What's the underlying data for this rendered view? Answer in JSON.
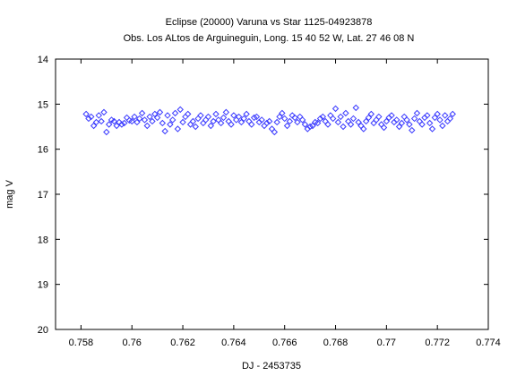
{
  "chart_data": {
    "type": "scatter",
    "title": "Eclipse (20000) Varuna vs Star 1125-04923878",
    "subtitle": "Obs. Los ALtos de Arguineguin, Long. 15 40 52 W, Lat. 27 46 08 N",
    "xlabel": "DJ - 2453735",
    "ylabel": "mag V",
    "xlim": [
      0.757,
      0.774
    ],
    "ylim": [
      14,
      20
    ],
    "y_inverted": true,
    "x_ticks": [
      "0.758",
      "0.76",
      "0.762",
      "0.764",
      "0.766",
      "0.768",
      "0.77",
      "0.772",
      "0.774"
    ],
    "x_tick_values": [
      0.758,
      0.76,
      0.762,
      0.764,
      0.766,
      0.768,
      0.77,
      0.772,
      0.774
    ],
    "y_ticks": [
      "14",
      "15",
      "16",
      "17",
      "18",
      "19",
      "20"
    ],
    "y_tick_values": [
      14,
      15,
      16,
      17,
      18,
      19,
      20
    ],
    "grid": false,
    "marker": "diamond",
    "marker_color": "#3a3aff",
    "series": [
      {
        "x": [
          0.7582,
          0.7583,
          0.7584,
          0.7585,
          0.7586,
          0.7587,
          0.7588,
          0.7589,
          0.759,
          0.7591,
          0.7592,
          0.7593,
          0.7594,
          0.7595,
          0.7596,
          0.7597,
          0.7598,
          0.7599,
          0.76,
          0.7601,
          0.7602,
          0.7603,
          0.7604,
          0.7605,
          0.7606,
          0.7607,
          0.7608,
          0.7609,
          0.761,
          0.7611,
          0.7612,
          0.7613,
          0.7614,
          0.7615,
          0.7616,
          0.7617,
          0.7618,
          0.7619,
          0.762,
          0.7621,
          0.7622,
          0.7623,
          0.7624,
          0.7625,
          0.7626,
          0.7627,
          0.7628,
          0.7629,
          0.763,
          0.7631,
          0.7632,
          0.7633,
          0.7634,
          0.7635,
          0.7636,
          0.7637,
          0.7638,
          0.7639,
          0.764,
          0.7641,
          0.7642,
          0.7643,
          0.7644,
          0.7645,
          0.7646,
          0.7647,
          0.7648,
          0.7649,
          0.765,
          0.7651,
          0.7652,
          0.7653,
          0.7654,
          0.7655,
          0.7656,
          0.7657,
          0.7658,
          0.7659,
          0.766,
          0.7661,
          0.7662,
          0.7663,
          0.7664,
          0.7665,
          0.7666,
          0.7667,
          0.7668,
          0.7669,
          0.767,
          0.7671,
          0.7672,
          0.7673,
          0.7674,
          0.7675,
          0.7676,
          0.7677,
          0.7678,
          0.7679,
          0.768,
          0.7681,
          0.7682,
          0.7683,
          0.7684,
          0.7685,
          0.7686,
          0.7687,
          0.7688,
          0.7689,
          0.769,
          0.7691,
          0.7692,
          0.7693,
          0.7694,
          0.7695,
          0.7696,
          0.7697,
          0.7698,
          0.7699,
          0.77,
          0.7701,
          0.7702,
          0.7703,
          0.7704,
          0.7705,
          0.7706,
          0.7707,
          0.7708,
          0.7709,
          0.771,
          0.7711,
          0.7712,
          0.7713,
          0.7714,
          0.7715,
          0.7716,
          0.7717,
          0.7718,
          0.7719,
          0.772,
          0.7721,
          0.7722,
          0.7723,
          0.7724,
          0.7725,
          0.7726
        ],
        "y": [
          15.22,
          15.32,
          15.28,
          15.48,
          15.4,
          15.25,
          15.38,
          15.18,
          15.62,
          15.45,
          15.35,
          15.38,
          15.48,
          15.4,
          15.45,
          15.42,
          15.3,
          15.36,
          15.38,
          15.28,
          15.4,
          15.32,
          15.2,
          15.35,
          15.48,
          15.28,
          15.38,
          15.22,
          15.3,
          15.18,
          15.42,
          15.6,
          15.25,
          15.45,
          15.35,
          15.2,
          15.55,
          15.12,
          15.4,
          15.28,
          15.22,
          15.45,
          15.38,
          15.5,
          15.32,
          15.25,
          15.42,
          15.35,
          15.28,
          15.48,
          15.38,
          15.22,
          15.35,
          15.42,
          15.3,
          15.18,
          15.38,
          15.45,
          15.25,
          15.35,
          15.28,
          15.4,
          15.32,
          15.22,
          15.38,
          15.45,
          15.3,
          15.28,
          15.4,
          15.35,
          15.48,
          15.42,
          15.38,
          15.55,
          15.62,
          15.4,
          15.28,
          15.2,
          15.32,
          15.48,
          15.38,
          15.25,
          15.3,
          15.4,
          15.28,
          15.35,
          15.45,
          15.55,
          15.5,
          15.48,
          15.4,
          15.42,
          15.32,
          15.28,
          15.38,
          15.45,
          15.25,
          15.32,
          15.1,
          15.4,
          15.28,
          15.5,
          15.2,
          15.38,
          15.45,
          15.32,
          15.08,
          15.4,
          15.48,
          15.55,
          15.38,
          15.3,
          15.22,
          15.42,
          15.35,
          15.28,
          15.45,
          15.52,
          15.38,
          15.3,
          15.25,
          15.4,
          15.35,
          15.5,
          15.42,
          15.28,
          15.35,
          15.45,
          15.58,
          15.32,
          15.2,
          15.38,
          15.45,
          15.3,
          15.25,
          15.42,
          15.55,
          15.3,
          15.22,
          15.35,
          15.48,
          15.25,
          15.38,
          15.32,
          15.22
        ]
      }
    ]
  }
}
